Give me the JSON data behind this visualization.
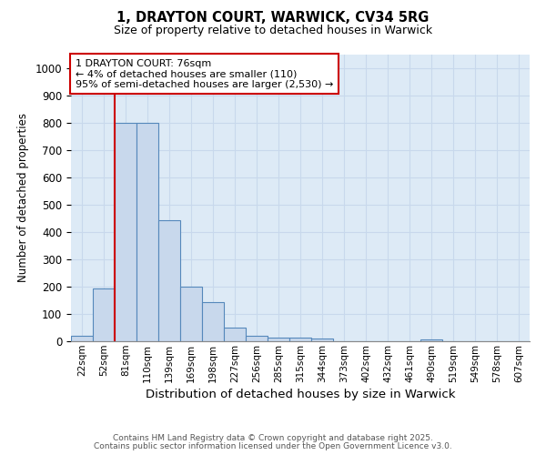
{
  "title1": "1, DRAYTON COURT, WARWICK, CV34 5RG",
  "title2": "Size of property relative to detached houses in Warwick",
  "xlabel": "Distribution of detached houses by size in Warwick",
  "ylabel": "Number of detached properties",
  "categories": [
    "22sqm",
    "52sqm",
    "81sqm",
    "110sqm",
    "139sqm",
    "169sqm",
    "198sqm",
    "227sqm",
    "256sqm",
    "285sqm",
    "315sqm",
    "344sqm",
    "373sqm",
    "402sqm",
    "432sqm",
    "461sqm",
    "490sqm",
    "519sqm",
    "549sqm",
    "578sqm",
    "607sqm"
  ],
  "values": [
    20,
    195,
    800,
    800,
    445,
    200,
    145,
    50,
    20,
    15,
    15,
    10,
    0,
    0,
    0,
    0,
    8,
    0,
    0,
    0,
    0
  ],
  "bar_color": "#c8d8ec",
  "bar_edge_color": "#5588bb",
  "red_line_index": 2,
  "red_line_color": "#cc0000",
  "annotation_text": "1 DRAYTON COURT: 76sqm\n← 4% of detached houses are smaller (110)\n95% of semi-detached houses are larger (2,530) →",
  "annotation_box_color": "#ffffff",
  "annotation_box_edge": "#cc0000",
  "ylim": [
    0,
    1050
  ],
  "yticks": [
    0,
    100,
    200,
    300,
    400,
    500,
    600,
    700,
    800,
    900,
    1000
  ],
  "grid_color": "#c8d8ec",
  "background_color": "#ddeaf6",
  "footer1": "Contains HM Land Registry data © Crown copyright and database right 2025.",
  "footer2": "Contains public sector information licensed under the Open Government Licence v3.0."
}
